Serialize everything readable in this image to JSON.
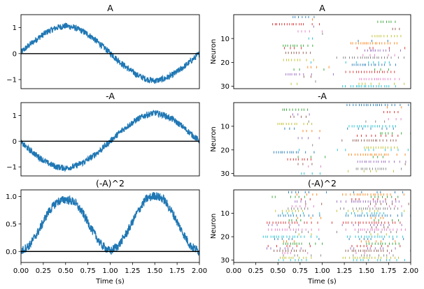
{
  "figure": {
    "time_label": "Time (s)",
    "neuron_label": "Neuron"
  },
  "palette": [
    "#1f77b4",
    "#ff7f0e",
    "#2ca02c",
    "#d62728",
    "#9467bd",
    "#8c564b",
    "#e377c2",
    "#7f7f7f",
    "#bcbd22",
    "#17becf"
  ],
  "chart_data": [
    {
      "type": "line",
      "title": "A",
      "xlabel": "",
      "ylabel": "",
      "xlim": [
        0,
        2
      ],
      "ylim": [
        -1.35,
        1.5
      ],
      "yticks": [
        -1,
        0,
        1
      ],
      "ytick_labels": [
        "−1",
        "0",
        "1"
      ],
      "xticks": [],
      "xtick_labels": [],
      "hline": 0,
      "series": [
        {
          "x": [
            0,
            0.1,
            0.2,
            0.3,
            0.4,
            0.5,
            0.6,
            0.7,
            0.8,
            0.9,
            1.0,
            1.1,
            1.2,
            1.3,
            1.4,
            1.5,
            1.6,
            1.7,
            1.8,
            1.9,
            2.0
          ],
          "y": [
            0.05,
            0.35,
            0.62,
            0.85,
            1.0,
            1.07,
            1.0,
            0.85,
            0.62,
            0.33,
            0.02,
            -0.3,
            -0.58,
            -0.82,
            -0.98,
            -1.05,
            -0.98,
            -0.82,
            -0.58,
            -0.3,
            0.0
          ],
          "noise": 0.12
        }
      ]
    },
    {
      "type": "scatter",
      "title": "A",
      "xlabel": "",
      "ylabel": "Neuron",
      "xlim": [
        0,
        2
      ],
      "ylim": [
        31,
        0
      ],
      "yticks": [
        10,
        20,
        30
      ],
      "ytick_labels": [
        "10",
        "20",
        "30"
      ],
      "xticks": [],
      "xtick_labels": [],
      "neurons": 30,
      "pattern": "A"
    },
    {
      "type": "line",
      "title": "-A",
      "xlabel": "",
      "ylabel": "",
      "xlim": [
        0,
        2
      ],
      "ylim": [
        -1.35,
        1.5
      ],
      "yticks": [
        -1,
        0,
        1
      ],
      "ytick_labels": [
        "−1",
        "0",
        "1"
      ],
      "xticks": [],
      "xtick_labels": [],
      "hline": 0,
      "series": [
        {
          "x": [
            0,
            0.1,
            0.2,
            0.3,
            0.4,
            0.5,
            0.6,
            0.7,
            0.8,
            0.9,
            1.0,
            1.1,
            1.2,
            1.3,
            1.4,
            1.5,
            1.6,
            1.7,
            1.8,
            1.9,
            2.0
          ],
          "y": [
            -0.05,
            -0.35,
            -0.62,
            -0.85,
            -1.0,
            -1.05,
            -0.98,
            -0.82,
            -0.6,
            -0.32,
            0.0,
            0.32,
            0.6,
            0.85,
            1.02,
            1.1,
            1.02,
            0.85,
            0.6,
            0.3,
            0.0
          ],
          "noise": 0.12
        }
      ]
    },
    {
      "type": "scatter",
      "title": "-A",
      "xlabel": "",
      "ylabel": "Neuron",
      "xlim": [
        0,
        2
      ],
      "ylim": [
        31,
        0
      ],
      "yticks": [
        10,
        20,
        30
      ],
      "ytick_labels": [
        "10",
        "20",
        "30"
      ],
      "xticks": [],
      "xtick_labels": [],
      "neurons": 30,
      "pattern": "negA"
    },
    {
      "type": "line",
      "title": "(-A)^2",
      "xlabel": "Time (s)",
      "ylabel": "",
      "xlim": [
        0,
        2
      ],
      "ylim": [
        -0.2,
        1.12
      ],
      "yticks": [
        0,
        0.5,
        1
      ],
      "ytick_labels": [
        "0.0",
        "0.5",
        "1.0"
      ],
      "xticks": [
        0,
        0.25,
        0.5,
        0.75,
        1.0,
        1.25,
        1.5,
        1.75,
        2.0
      ],
      "xtick_labels": [
        "0.00",
        "0.25",
        "0.50",
        "0.75",
        "1.00",
        "1.25",
        "1.50",
        "1.75",
        "2.00"
      ],
      "hline": 0,
      "series": [
        {
          "x": [
            0,
            0.1,
            0.2,
            0.3,
            0.4,
            0.5,
            0.6,
            0.7,
            0.8,
            0.9,
            1.0,
            1.1,
            1.2,
            1.3,
            1.4,
            1.5,
            1.6,
            1.7,
            1.8,
            1.9,
            2.0
          ],
          "y": [
            0.0,
            0.12,
            0.38,
            0.7,
            0.9,
            0.95,
            0.9,
            0.68,
            0.38,
            0.12,
            0.0,
            0.12,
            0.38,
            0.7,
            0.95,
            1.02,
            0.95,
            0.7,
            0.38,
            0.1,
            0.0
          ],
          "noise": 0.08
        }
      ]
    },
    {
      "type": "scatter",
      "title": "(-A)^2",
      "xlabel": "Time (s)",
      "ylabel": "Neuron",
      "xlim": [
        0,
        2
      ],
      "ylim": [
        31,
        0
      ],
      "yticks": [
        10,
        20,
        30
      ],
      "ytick_labels": [
        "10",
        "20",
        "30"
      ],
      "xticks": [
        0,
        0.25,
        0.5,
        0.75,
        1.0,
        1.25,
        1.5,
        1.75,
        2.0
      ],
      "xtick_labels": [
        "0.00",
        "0.25",
        "0.50",
        "0.75",
        "1.00",
        "1.25",
        "1.50",
        "1.75",
        "2.00"
      ],
      "neurons": 30,
      "pattern": "sq"
    }
  ]
}
